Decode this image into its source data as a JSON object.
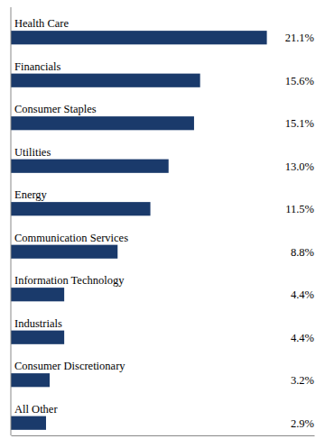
{
  "chart_data": {
    "type": "bar",
    "orientation": "horizontal",
    "categories": [
      "Health Care",
      "Financials",
      "Consumer Staples",
      "Utilities",
      "Energy",
      "Communication Services",
      "Information Technology",
      "Industrials",
      "Consumer Discretionary",
      "All Other"
    ],
    "values": [
      21.1,
      15.6,
      15.1,
      13.0,
      11.5,
      8.8,
      4.4,
      4.4,
      3.2,
      2.9
    ],
    "value_labels": [
      "21.1%",
      "15.6%",
      "15.1%",
      "13.0%",
      "11.5%",
      "8.8%",
      "4.4%",
      "4.4%",
      "3.2%",
      "2.9%"
    ],
    "data_labels": true,
    "color": "#1a3a6b",
    "xlim": [
      0,
      25
    ],
    "xticks": [],
    "tick_labels": false,
    "grid": false
  }
}
